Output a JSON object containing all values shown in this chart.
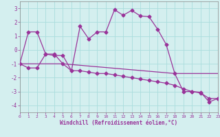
{
  "xlabel": "Windchill (Refroidissement éolien,°C)",
  "background_color": "#d4efef",
  "grid_color": "#aadddd",
  "line_color": "#993399",
  "xlim": [
    0,
    23
  ],
  "ylim": [
    -4.5,
    3.5
  ],
  "yticks": [
    -4,
    -3,
    -2,
    -1,
    0,
    1,
    2,
    3
  ],
  "xticks": [
    0,
    1,
    2,
    3,
    4,
    5,
    6,
    7,
    8,
    9,
    10,
    11,
    12,
    13,
    14,
    15,
    16,
    17,
    18,
    19,
    20,
    21,
    22,
    23
  ],
  "main_x": [
    0,
    1,
    2,
    3,
    4,
    5,
    6,
    7,
    8,
    9,
    10,
    11,
    12,
    13,
    14,
    15,
    16,
    17,
    18,
    19,
    20,
    21,
    22,
    23
  ],
  "main_y": [
    -1.0,
    1.3,
    1.3,
    -0.3,
    -0.4,
    -0.4,
    -1.5,
    1.7,
    0.8,
    1.3,
    1.3,
    2.9,
    2.5,
    2.85,
    2.45,
    2.4,
    1.5,
    0.4,
    -1.7,
    -3.0,
    -3.0,
    -3.05,
    -3.75,
    -3.5
  ],
  "line2_x": [
    0,
    1,
    2,
    3,
    4,
    5,
    6,
    7,
    8,
    9,
    10,
    11,
    12,
    13,
    14,
    15,
    16,
    17,
    18,
    19,
    20,
    21,
    22,
    23
  ],
  "line2_y": [
    -1.0,
    -1.3,
    -1.3,
    -0.3,
    -0.3,
    -1.0,
    -1.5,
    -1.5,
    -1.6,
    -1.7,
    -1.7,
    -1.8,
    -1.9,
    -2.0,
    -2.1,
    -2.2,
    -2.3,
    -2.4,
    -2.55,
    -2.8,
    -3.0,
    -3.1,
    -3.5,
    -3.5
  ],
  "line3_x": [
    0,
    5,
    18,
    23
  ],
  "line3_y": [
    -1.0,
    -1.0,
    -1.7,
    -1.7
  ],
  "marker_size": 2.5,
  "line_width": 0.9
}
